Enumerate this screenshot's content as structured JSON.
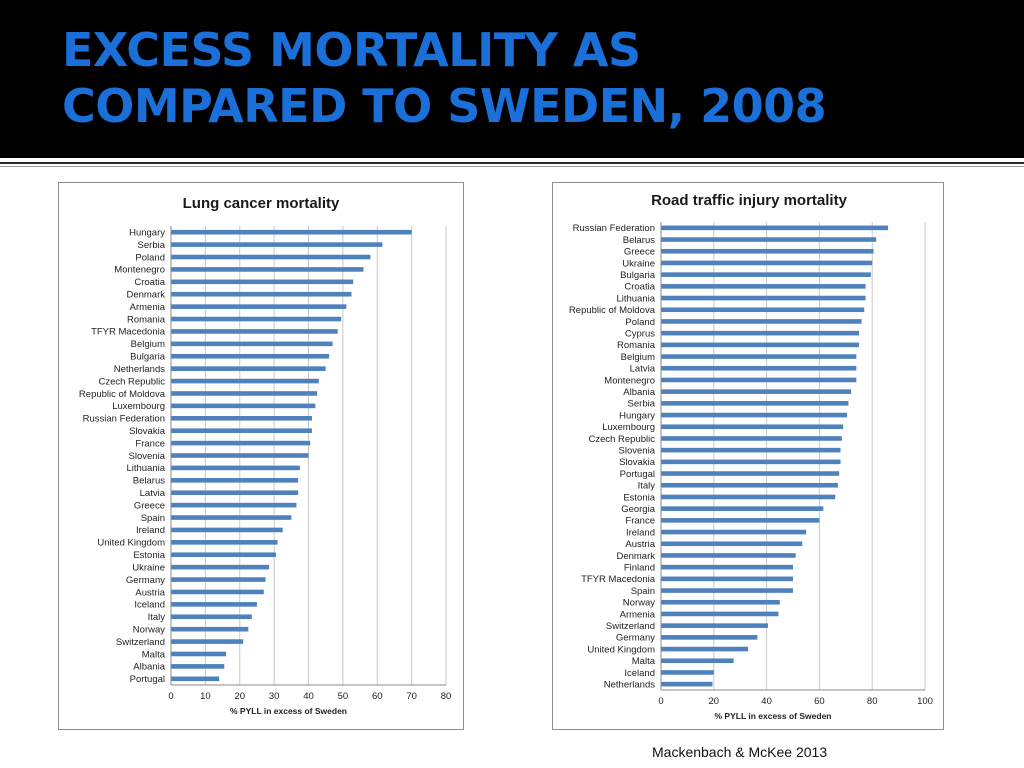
{
  "slide": {
    "title_line1": "EXCESS MORTALITY AS",
    "title_line2": "COMPARED TO SWEDEN, 2008",
    "source": "Mackenbach & McKee 2013"
  },
  "colors": {
    "title": "#1a6fd8",
    "bar": "#4f81bd",
    "grid": "#c8c8c8",
    "band": "#000000"
  },
  "chart_data": [
    {
      "type": "bar",
      "orientation": "horizontal",
      "title": "Lung cancer mortality",
      "xlabel": "% PYLL in excess of Sweden",
      "xlim": [
        0,
        80
      ],
      "xticks": [
        0,
        10,
        20,
        30,
        40,
        50,
        60,
        70,
        80
      ],
      "grid": true,
      "categories": [
        "Hungary",
        "Serbia",
        "Poland",
        "Montenegro",
        "Croatia",
        "Denmark",
        "Armenia",
        "Romania",
        "TFYR Macedonia",
        "Belgium",
        "Bulgaria",
        "Netherlands",
        "Czech Republic",
        "Republic of Moldova",
        "Luxembourg",
        "Russian Federation",
        "Slovakia",
        "France",
        "Slovenia",
        "Lithuania",
        "Belarus",
        "Latvia",
        "Greece",
        "Spain",
        "Ireland",
        "United Kingdom",
        "Estonia",
        "Ukraine",
        "Germany",
        "Austria",
        "Iceland",
        "Italy",
        "Norway",
        "Switzerland",
        "Malta",
        "Albania",
        "Portugal"
      ],
      "values": [
        70,
        61.5,
        58,
        56,
        53,
        52.5,
        51,
        49.5,
        48.5,
        47,
        46,
        45,
        43,
        42.5,
        42,
        41,
        41,
        40.5,
        40,
        37.5,
        37,
        37,
        36.5,
        35,
        32.5,
        31,
        30.5,
        28.5,
        27.5,
        27,
        25,
        23.5,
        22.5,
        21,
        16,
        15.5,
        14
      ]
    },
    {
      "type": "bar",
      "orientation": "horizontal",
      "title": "Road traffic injury mortality",
      "xlabel": "% PYLL in excess of Sweden",
      "xlim": [
        0,
        100
      ],
      "xticks": [
        0,
        20,
        40,
        60,
        80,
        100
      ],
      "grid": true,
      "categories": [
        "Russian Federation",
        "Belarus",
        "Greece",
        "Ukraine",
        "Bulgaria",
        "Croatia",
        "Lithuania",
        "Republic of Moldova",
        "Poland",
        "Cyprus",
        "Romania",
        "Belgium",
        "Latvia",
        "Montenegro",
        "Albania",
        "Serbia",
        "Hungary",
        "Luxembourg",
        "Czech Republic",
        "Slovenia",
        "Slovakia",
        "Portugal",
        "Italy",
        "Estonia",
        "Georgia",
        "France",
        "Ireland",
        "Austria",
        "Denmark",
        "Finland",
        "TFYR Macedonia",
        "Spain",
        "Norway",
        "Armenia",
        "Switzerland",
        "Germany",
        "United Kingdom",
        "Malta",
        "Iceland",
        "Netherlands"
      ],
      "values": [
        86,
        81.5,
        80.5,
        80,
        79.5,
        77.5,
        77.5,
        77,
        76,
        75,
        75,
        74,
        74,
        74,
        72,
        71,
        70.5,
        69,
        68.5,
        68,
        68,
        67.5,
        67,
        66,
        61.5,
        60,
        55,
        53.5,
        51,
        50,
        50,
        50,
        45,
        44.5,
        40.5,
        36.5,
        33,
        27.5,
        20,
        19.5
      ]
    }
  ]
}
